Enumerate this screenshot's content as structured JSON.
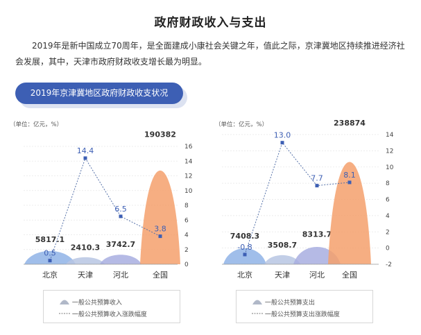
{
  "page": {
    "title": "政府财政收入与支出",
    "intro": "2019年是新中国成立70周年，是全面建成小康社会关键之年，值此之际，京津冀地区持续推进经济社会发展，其中，天津市政府财政收支增长最为明显。",
    "banner": "2019年京津冀地区政府财政收支状况"
  },
  "colors": {
    "accent": "#3d5fb4",
    "beijing": "#8fb3e6",
    "tianjin": "#b7c5e3",
    "hebei": "#a8aee0",
    "national": "#f4a06c",
    "line": "#5470a8",
    "marker": "#3d5fb4"
  },
  "chart_data": [
    {
      "type": "area",
      "unit_label": "（单位：亿元，%）",
      "categories": [
        "北京",
        "天津",
        "河北",
        "全国"
      ],
      "series": [
        {
          "name": "一般公共预算收入",
          "values": [
            5817.1,
            2410.3,
            3742.7,
            190382
          ]
        },
        {
          "name": "一般公共预算收入涨跌幅度",
          "values": [
            0.5,
            14.4,
            6.5,
            3.8
          ]
        }
      ],
      "value_labels": [
        "5817.1",
        "2410.3",
        "3742.7",
        "190382"
      ],
      "rate_labels": [
        "0.5",
        "14.4",
        "6.5",
        "3.8"
      ],
      "y2_ticks": [
        "0",
        "2",
        "4",
        "6",
        "8",
        "10",
        "12",
        "14",
        "16"
      ],
      "y2lim": [
        0,
        16
      ]
    },
    {
      "type": "area",
      "unit_label": "（单位：亿元，%）",
      "categories": [
        "北京",
        "天津",
        "河北",
        "全国"
      ],
      "series": [
        {
          "name": "一般公共预算支出",
          "values": [
            7408.3,
            3508.7,
            8313.7,
            238874
          ]
        },
        {
          "name": "一般公共预算支出涨跌幅度",
          "values": [
            -0.8,
            13.0,
            7.7,
            8.1
          ]
        }
      ],
      "value_labels": [
        "7408.3",
        "3508.7",
        "8313.7",
        "238874"
      ],
      "rate_labels": [
        "-0.8",
        "13.0",
        "7.7",
        "8.1"
      ],
      "y2_ticks": [
        "-2",
        "0",
        "2",
        "4",
        "6",
        "8",
        "10",
        "12",
        "14"
      ],
      "y2lim": [
        -2,
        14
      ]
    }
  ]
}
